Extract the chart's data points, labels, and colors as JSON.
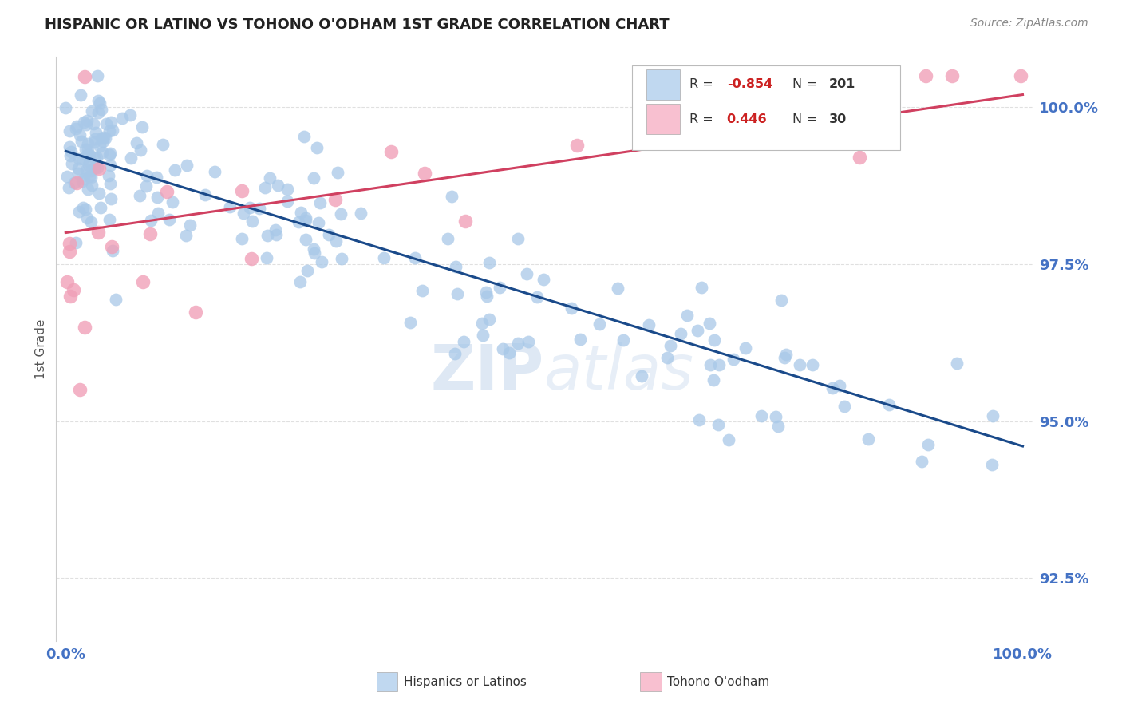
{
  "title": "HISPANIC OR LATINO VS TOHONO O'ODHAM 1ST GRADE CORRELATION CHART",
  "source_text": "Source: ZipAtlas.com",
  "ylabel": "1st Grade",
  "y_min": 91.5,
  "y_max": 100.8,
  "x_min": -1.0,
  "x_max": 101.0,
  "blue_scatter_color": "#a8c8e8",
  "pink_scatter_color": "#f0a0b8",
  "blue_line_color": "#1a4a8a",
  "pink_line_color": "#d04060",
  "watermark_color": "#d0dff0",
  "title_color": "#222222",
  "tick_label_color": "#4472c4",
  "grid_color": "#cccccc",
  "background_color": "#ffffff",
  "legend_blue_color": "#c0d8f0",
  "legend_pink_color": "#f8c0d0",
  "R_blue": "-0.854",
  "N_blue": "201",
  "R_pink": "0.446",
  "N_pink": "30",
  "R_color": "#4472c4",
  "N_color": "#333333",
  "R_value_color_blue": "#cc2222",
  "R_value_color_pink": "#cc2222",
  "blue_intercept": 99.3,
  "blue_slope": -0.047,
  "pink_intercept": 98.0,
  "pink_slope": 0.022
}
